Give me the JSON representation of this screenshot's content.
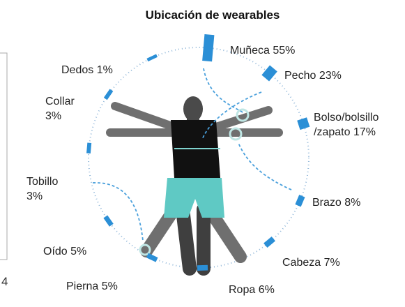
{
  "chart_data": {
    "type": "radial-bar",
    "title": "Ubicación de wearables",
    "categories": [
      "Muñeca",
      "Pecho",
      "Bolso/bolsillo /zapato",
      "Brazo",
      "Cabeza",
      "Ropa",
      "Pierna",
      "Oído",
      "Tobillo",
      "Collar",
      "Dedos"
    ],
    "values": [
      55,
      23,
      17,
      8,
      7,
      6,
      5,
      5,
      3,
      3,
      1
    ],
    "value_labels": [
      "55%",
      "23%",
      "17%",
      "8%",
      "7%",
      "6%",
      "5%",
      "5%",
      "3%",
      "3%",
      "1%"
    ],
    "color": "#2b8fd6",
    "annotations": [
      "4"
    ]
  }
}
